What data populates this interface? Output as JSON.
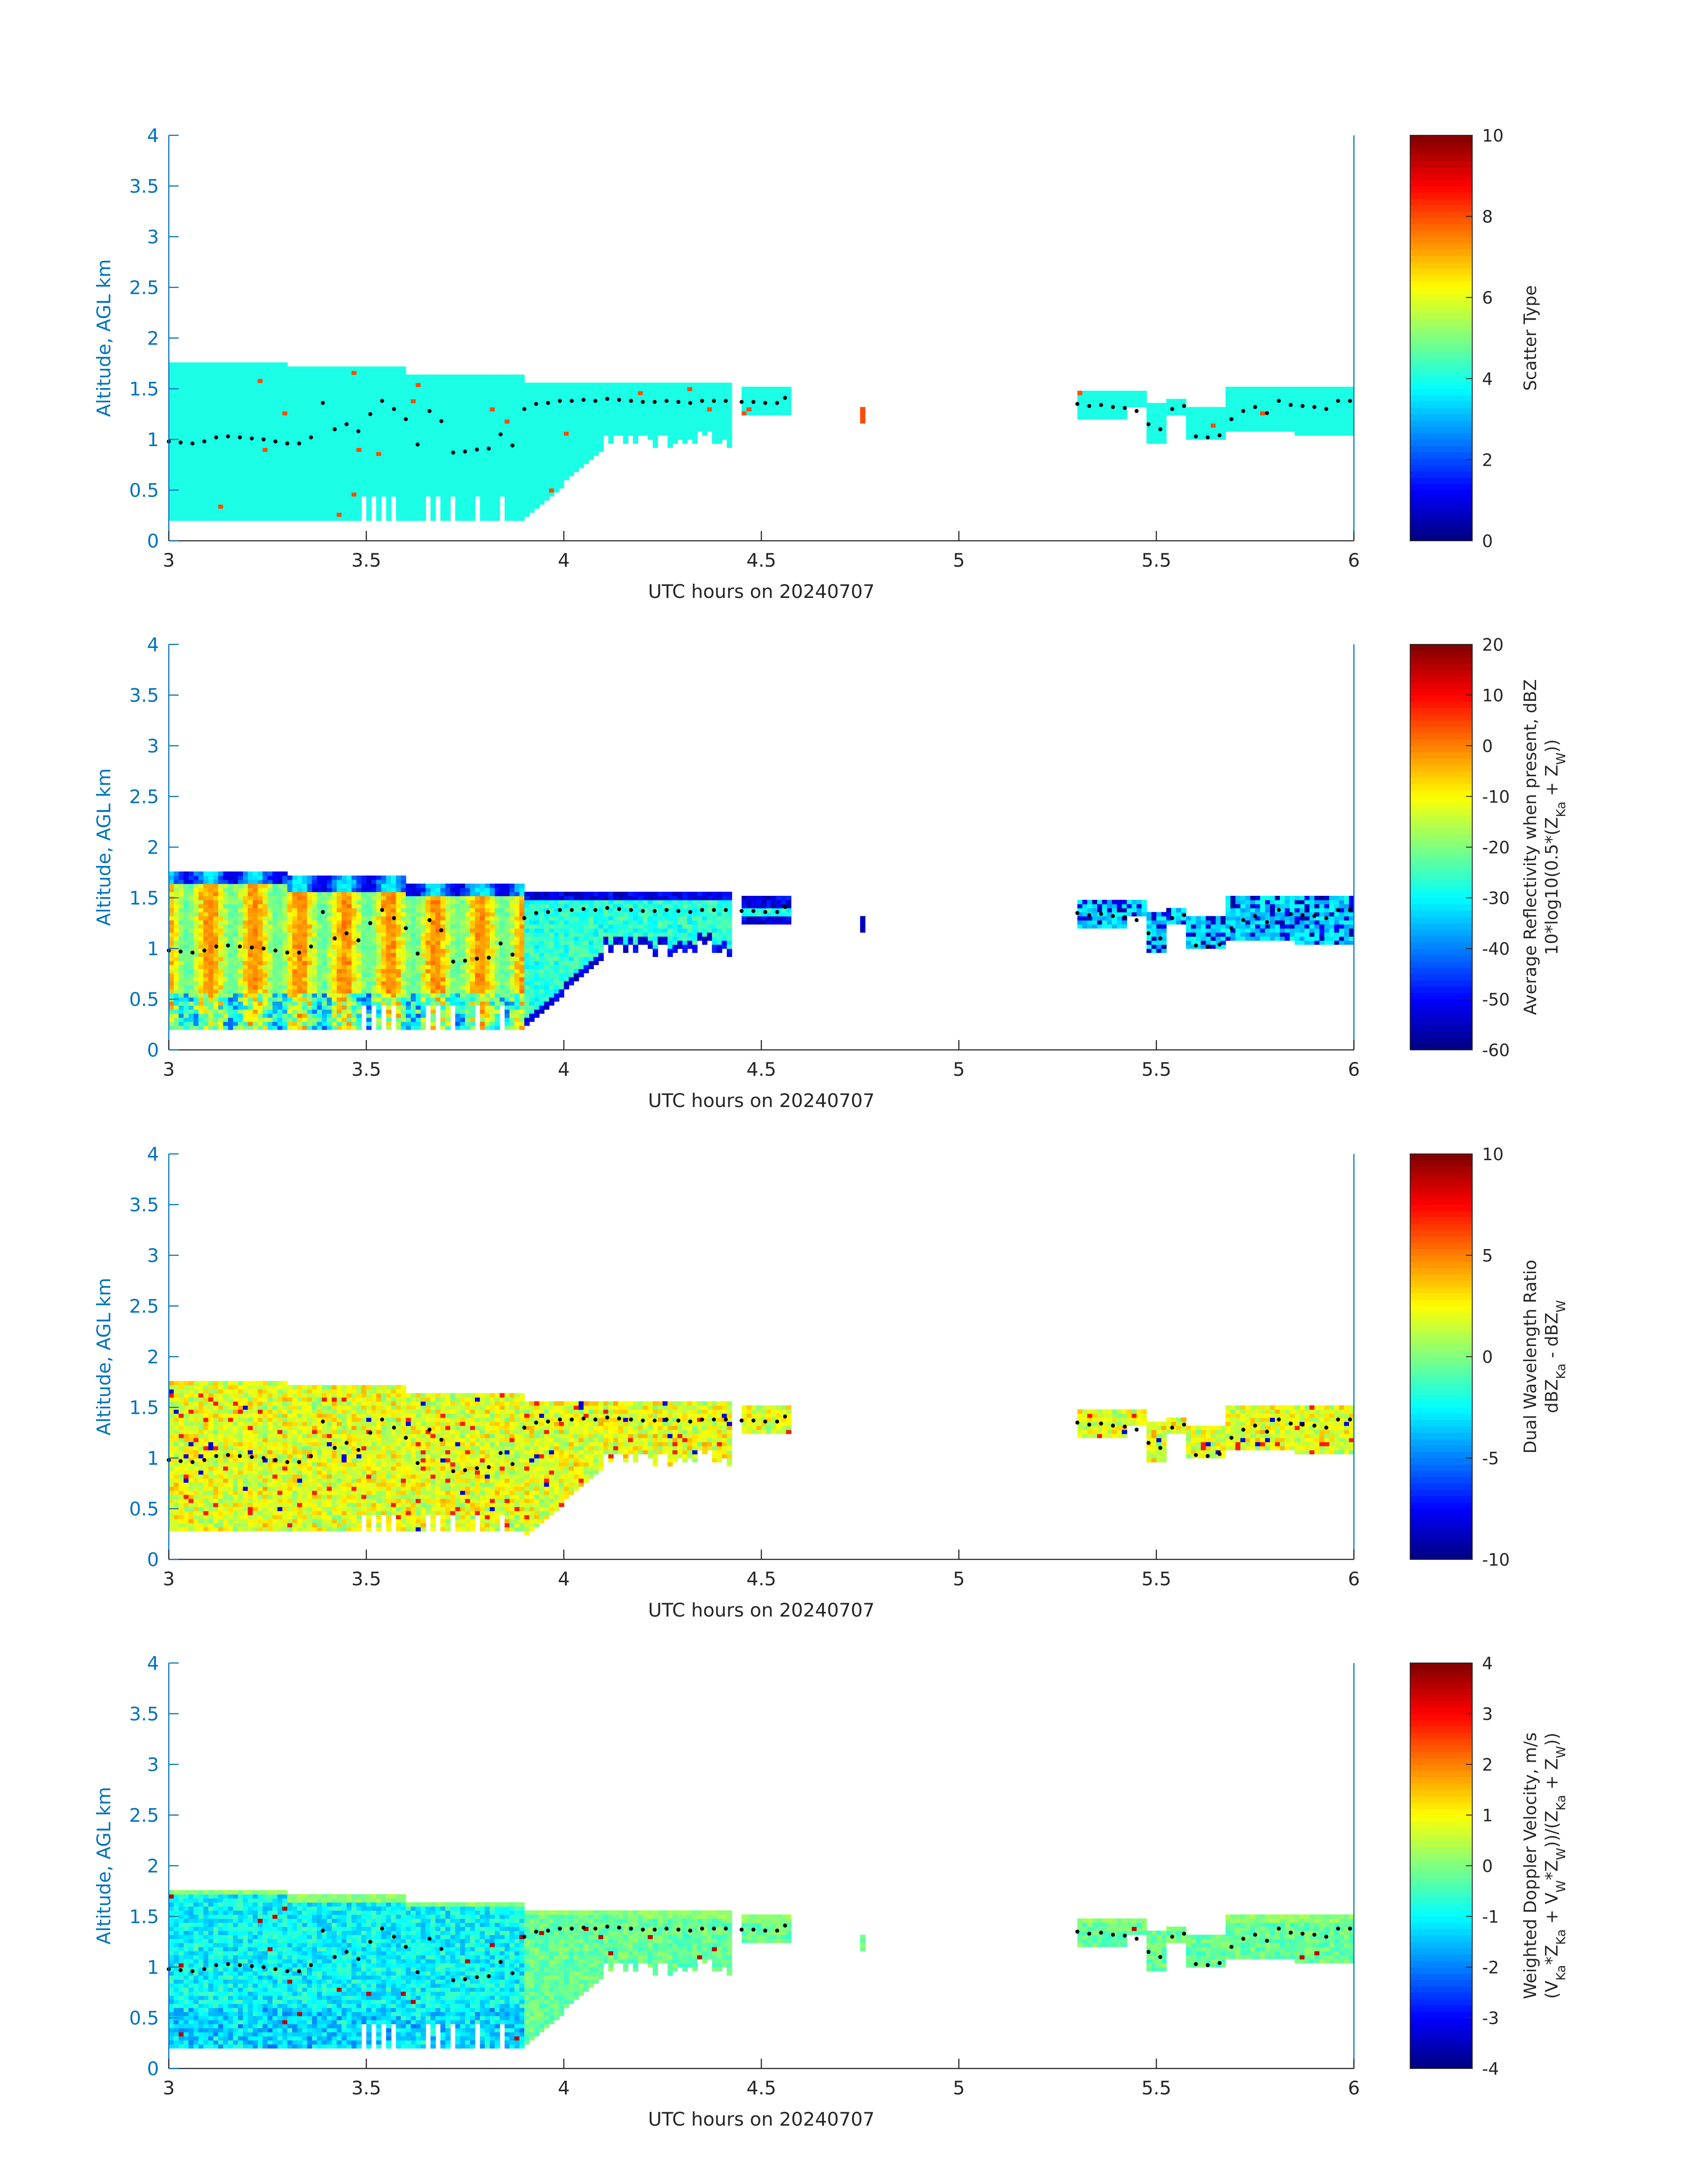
{
  "figure": {
    "date_label": "20240707"
  },
  "chart_data": [
    {
      "type": "heatmap",
      "title": "",
      "xlabel": "UTC hours on 20240707",
      "ylabel": "Altitude, AGL km",
      "xlim": [
        3,
        6
      ],
      "ylim": [
        0,
        4
      ],
      "xticks": [
        "3",
        "3.5",
        "4",
        "4.5",
        "5",
        "5.5",
        "6"
      ],
      "yticks": [
        "0",
        "0.5",
        "1",
        "1.5",
        "2",
        "2.5",
        "3",
        "3.5",
        "4"
      ],
      "colorbar": {
        "label_lines": [
          "Scatter Type"
        ],
        "range": [
          0,
          10
        ],
        "ticks": [
          "0",
          "2",
          "4",
          "6",
          "8",
          "10"
        ]
      },
      "field": "scatter_type",
      "dominant_value": 4,
      "notes": "Cloud echo region 3.0-4.55 h between 0.2-1.75 km; isolated echoes near 4.75 h and 5.3-6.0 h"
    },
    {
      "type": "heatmap",
      "title": "",
      "xlabel": "UTC hours on 20240707",
      "ylabel": "Altitude, AGL km",
      "xlim": [
        3,
        6
      ],
      "ylim": [
        0,
        4
      ],
      "xticks": [
        "3",
        "3.5",
        "4",
        "4.5",
        "5",
        "5.5",
        "6"
      ],
      "yticks": [
        "0",
        "0.5",
        "1",
        "1.5",
        "2",
        "2.5",
        "3",
        "3.5",
        "4"
      ],
      "colorbar": {
        "label_lines": [
          "Average Reflectivity when present, dBZ",
          "10*log10(0.5*(Z",
          "Ka",
          " + Z",
          "W",
          "))"
        ],
        "range": [
          -60,
          20
        ],
        "ticks": [
          "-60",
          "-50",
          "-40",
          "-30",
          "-20",
          "-10",
          "0",
          "10",
          "20"
        ]
      },
      "field": "reflectivity_dbz"
    },
    {
      "type": "heatmap",
      "title": "",
      "xlabel": "UTC hours on 20240707",
      "ylabel": "Altitude, AGL km",
      "xlim": [
        3,
        6
      ],
      "ylim": [
        0,
        4
      ],
      "xticks": [
        "3",
        "3.5",
        "4",
        "4.5",
        "5",
        "5.5",
        "6"
      ],
      "yticks": [
        "0",
        "0.5",
        "1",
        "1.5",
        "2",
        "2.5",
        "3",
        "3.5",
        "4"
      ],
      "colorbar": {
        "label_lines": [
          "Dual Wavelength Ratio",
          "dBZ",
          "Ka",
          " - dBZ",
          "W"
        ],
        "range": [
          -10,
          10
        ],
        "ticks": [
          "-10",
          "-5",
          "0",
          "5",
          "10"
        ]
      },
      "field": "dwr"
    },
    {
      "type": "heatmap",
      "title": "",
      "xlabel": "UTC hours on 20240707",
      "ylabel": "Altitude, AGL km",
      "xlim": [
        3,
        6
      ],
      "ylim": [
        0,
        4
      ],
      "xticks": [
        "3",
        "3.5",
        "4",
        "4.5",
        "5",
        "5.5",
        "6"
      ],
      "yticks": [
        "0",
        "0.5",
        "1",
        "1.5",
        "2",
        "2.5",
        "3",
        "3.5",
        "4"
      ],
      "colorbar": {
        "label_lines": [
          "Weighted Doppler Velocity, m/s",
          "(V",
          "Ka",
          "*Z",
          "Ka",
          " + V",
          "W",
          "*Z",
          "W",
          "))/(Z",
          "Ka",
          " + Z",
          "W",
          "))"
        ],
        "range": [
          -4,
          4
        ],
        "ticks": [
          "-4",
          "-3",
          "-2",
          "-1",
          "0",
          "1",
          "2",
          "3",
          "4"
        ]
      },
      "field": "doppler_velocity"
    }
  ],
  "cloud_base_dots": {
    "description": "black dotted trace of cloud base altitude (km) vs UTC hours, shared by all panels",
    "x": [
      3.0,
      3.03,
      3.06,
      3.09,
      3.12,
      3.15,
      3.18,
      3.21,
      3.24,
      3.27,
      3.3,
      3.33,
      3.36,
      3.39,
      3.42,
      3.45,
      3.48,
      3.51,
      3.54,
      3.57,
      3.6,
      3.63,
      3.66,
      3.69,
      3.72,
      3.75,
      3.78,
      3.81,
      3.84,
      3.87,
      3.9,
      3.93,
      3.96,
      3.99,
      4.02,
      4.05,
      4.08,
      4.11,
      4.14,
      4.17,
      4.2,
      4.23,
      4.26,
      4.29,
      4.32,
      4.35,
      4.38,
      4.41,
      4.45,
      4.48,
      4.51,
      4.54,
      4.56,
      5.3,
      5.33,
      5.36,
      5.39,
      5.42,
      5.45,
      5.48,
      5.51,
      5.54,
      5.57,
      5.6,
      5.63,
      5.66,
      5.69,
      5.72,
      5.75,
      5.78,
      5.81,
      5.84,
      5.87,
      5.9,
      5.93,
      5.96,
      5.99
    ],
    "y": [
      0.98,
      0.97,
      0.96,
      0.98,
      1.02,
      1.03,
      1.02,
      1.01,
      1.0,
      0.98,
      0.96,
      0.96,
      1.02,
      1.36,
      1.1,
      1.15,
      1.08,
      1.25,
      1.38,
      1.3,
      1.2,
      0.95,
      1.28,
      1.18,
      0.87,
      0.88,
      0.9,
      0.91,
      1.05,
      0.94,
      1.3,
      1.35,
      1.36,
      1.38,
      1.38,
      1.39,
      1.38,
      1.4,
      1.39,
      1.38,
      1.37,
      1.37,
      1.38,
      1.37,
      1.36,
      1.38,
      1.38,
      1.38,
      1.37,
      1.37,
      1.36,
      1.36,
      1.41,
      1.35,
      1.33,
      1.34,
      1.32,
      1.31,
      1.28,
      1.15,
      1.1,
      1.3,
      1.33,
      1.03,
      1.02,
      1.04,
      1.2,
      1.28,
      1.32,
      1.26,
      1.38,
      1.34,
      1.33,
      1.32,
      1.3,
      1.38,
      1.38
    ]
  }
}
